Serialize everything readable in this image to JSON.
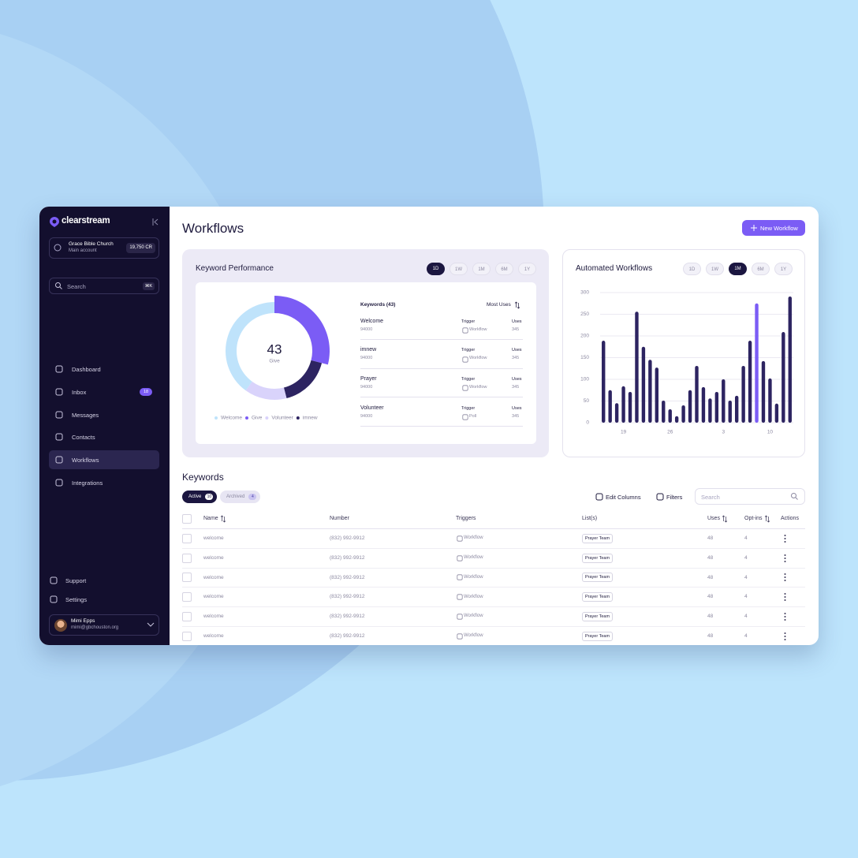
{
  "sidebar": {
    "brand": "clearstream",
    "account": {
      "name": "Grace Bible Church",
      "type": "Main account",
      "credits": "19,750 CR"
    },
    "search": {
      "placeholder": "Search",
      "shortcut": "⌘K"
    },
    "nav": [
      {
        "label": "Dashboard"
      },
      {
        "label": "Inbox",
        "badge": "18"
      },
      {
        "label": "Messages"
      },
      {
        "label": "Contacts"
      },
      {
        "label": "Workflows",
        "active": true
      },
      {
        "label": "Integrations"
      }
    ],
    "footer": [
      {
        "label": "Support"
      },
      {
        "label": "Settings"
      }
    ],
    "user": {
      "name": "Mimi Epps",
      "email": "mimi@gbchouston.org"
    }
  },
  "header": {
    "title": "Workflows",
    "button": "New Workflow"
  },
  "keyword_performance": {
    "ranges": [
      "1D",
      "1W",
      "1M",
      "6M",
      "1Y"
    ],
    "active_range": 0,
    "list": {
      "title": "Keywords (43)",
      "sort": "Most Uses",
      "trigger_header": "Trigger",
      "uses_header": "Uses",
      "rows": [
        {
          "name": "Welcome",
          "number": "94000",
          "trigger": "Workflow",
          "uses": "345"
        },
        {
          "name": "imnew",
          "number": "94000",
          "trigger": "Workflow",
          "uses": "345"
        },
        {
          "name": "Prayer",
          "number": "94000",
          "trigger": "Workflow",
          "uses": "345"
        },
        {
          "name": "Volunteer",
          "number": "94000",
          "trigger": "Poll",
          "uses": "345"
        }
      ]
    }
  },
  "automated_workflows": {
    "ranges": [
      "1D",
      "1W",
      "1M",
      "6M",
      "1Y"
    ],
    "active_range": 2
  },
  "chart_data": [
    {
      "type": "donut",
      "title": "Keyword Performance",
      "center_value": "43",
      "center_label": "Give",
      "categories": [
        "Welcome",
        "Give",
        "Volunteer",
        "imnew"
      ],
      "values": [
        40,
        29,
        14,
        17
      ],
      "colors": [
        "#bfe3fb",
        "#7b5cf5",
        "#d9d3fb",
        "#2d2461"
      ],
      "highlight_index": 1
    },
    {
      "type": "bar",
      "title": "Automated Workflows",
      "categories": [
        null,
        null,
        null,
        "19",
        null,
        null,
        null,
        null,
        null,
        null,
        "26",
        null,
        null,
        null,
        null,
        null,
        null,
        null,
        "3",
        null,
        null,
        null,
        null,
        null,
        null,
        "10",
        null,
        null,
        null
      ],
      "values": [
        189,
        75,
        45,
        84,
        71,
        256,
        175,
        145,
        127,
        51,
        31,
        15,
        40,
        75,
        131,
        82,
        56,
        71,
        100,
        51,
        62,
        131,
        189,
        275,
        142,
        102,
        44,
        209,
        291
      ],
      "color": "#2d2461",
      "highlight_index": 23,
      "highlight_color": "#7b5cf5",
      "ylim": [
        0,
        300
      ],
      "yticks": [
        0,
        50,
        100,
        150,
        200,
        250,
        300
      ],
      "grid": true
    }
  ],
  "keywords": {
    "title": "Keywords",
    "tabs": [
      {
        "label": "Active",
        "count": "10",
        "active": true
      },
      {
        "label": "Archived",
        "count": "4"
      }
    ],
    "tools": {
      "edit_columns": "Edit Columns",
      "filters": "Filters",
      "search": "Search"
    },
    "columns": [
      "Name",
      "Number",
      "Triggers",
      "List(s)",
      "Uses",
      "Opt-ins",
      "Actions"
    ],
    "rows": [
      [
        "welcome",
        "(832) 992-9912",
        "Workflow",
        "Prayer Team",
        "48",
        "4"
      ],
      [
        "welcome",
        "(832) 992-9912",
        "Workflow",
        "Prayer Team",
        "48",
        "4"
      ],
      [
        "welcome",
        "(832) 992-9912",
        "Workflow",
        "Prayer Team",
        "48",
        "4"
      ],
      [
        "welcome",
        "(832) 992-9912",
        "Workflow",
        "Prayer Team",
        "48",
        "4"
      ],
      [
        "welcome",
        "(832) 992-9912",
        "Workflow",
        "Prayer Team",
        "48",
        "4"
      ],
      [
        "welcome",
        "(832) 992-9912",
        "Workflow",
        "Prayer Team",
        "48",
        "4"
      ]
    ]
  }
}
